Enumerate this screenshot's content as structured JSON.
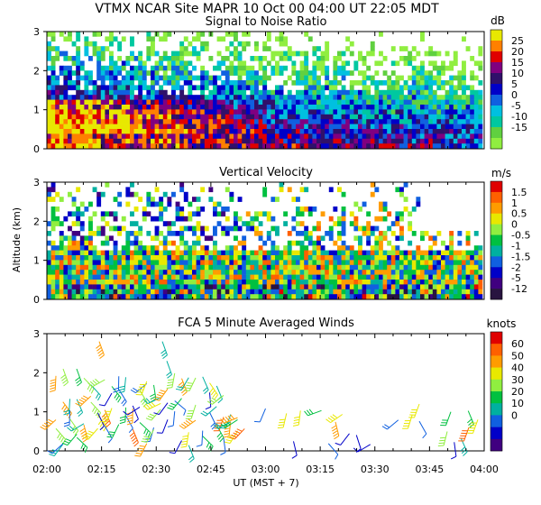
{
  "header": {
    "title": "VTMX  NCAR Site  MAPR 10 Oct 00  04:00 UT  22:05  MDT"
  },
  "shared_axes": {
    "xlabel": "UT  (MST + 7)",
    "xticks": [
      "02:00",
      "02:15",
      "02:30",
      "02:45",
      "03:00",
      "03:15",
      "03:30",
      "03:45",
      "04:00"
    ],
    "ylabel": "Altitude (km)",
    "yticks": [
      "0",
      "1",
      "2",
      "3"
    ]
  },
  "chart_data": [
    {
      "type": "heatmap",
      "title": "Signal to Noise Ratio",
      "units": "dB",
      "ylim": [
        0,
        3
      ],
      "xlim": [
        "02:00",
        "04:00"
      ],
      "colorbar": {
        "labels": [
          "25",
          "20",
          "15",
          "10",
          "5",
          "0",
          "-5",
          "-10",
          "-15"
        ],
        "colors": [
          "#e8e800",
          "#ff8000",
          "#e00000",
          "#800080",
          "#30106a",
          "#0000c8",
          "#1060e0",
          "#00c0e0",
          "#00c8a0",
          "#60d040",
          "#90ee40"
        ]
      }
    },
    {
      "type": "heatmap",
      "title": "Vertical Velocity",
      "units": "m/s",
      "ylim": [
        0,
        3
      ],
      "xlim": [
        "02:00",
        "04:00"
      ],
      "colorbar": {
        "labels": [
          "1.5",
          "1",
          "0.5",
          "0",
          "-0.5",
          "-1",
          "-1.5",
          "-2",
          "-5",
          "-12"
        ],
        "colors": [
          "#e00000",
          "#ff6000",
          "#ff9c00",
          "#e8e800",
          "#90ee40",
          "#00c040",
          "#00b0a0",
          "#1060e0",
          "#0000c8",
          "#400080",
          "#281440"
        ]
      }
    },
    {
      "type": "wind_barbs",
      "title": "FCA 5 Minute Averaged Winds",
      "units": "knots",
      "ylim": [
        0,
        3
      ],
      "xlim": [
        "02:00",
        "04:00"
      ],
      "colorbar": {
        "labels": [
          "60",
          "50",
          "40",
          "30",
          "20",
          "10",
          "0"
        ],
        "colors": [
          "#e00000",
          "#ff6000",
          "#ff9c00",
          "#e8e800",
          "#90ee40",
          "#00c040",
          "#00b0a0",
          "#1060e0",
          "#0000c8",
          "#400080"
        ]
      }
    }
  ]
}
